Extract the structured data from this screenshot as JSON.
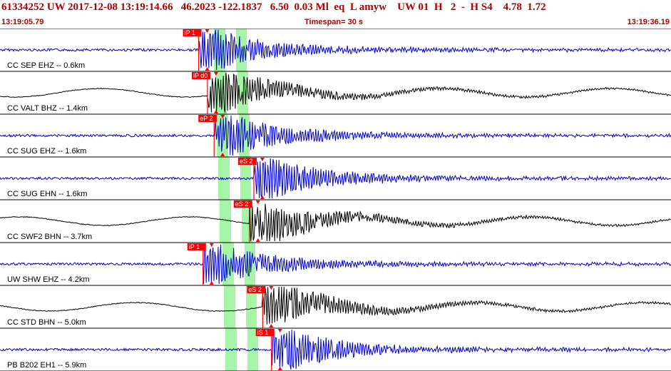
{
  "header": {
    "event_line": "61334252 UW 2017-12-08 13:19:14.66   46.2023 -122.1837   6.50  0.03 Ml  eq  L amyw    UW 01  H   2  -  H S4    4.78  1.72",
    "start_time": "13:19:05.79",
    "timespan": "Timespan=  30 s",
    "end_time": "13:19:36.19"
  },
  "colors": {
    "trace_blue": "#0000cc",
    "trace_black": "#000000",
    "window_green": "#a6f5a6",
    "pick_red": "#ff0000",
    "header_text": "#b00000"
  },
  "traces": [
    {
      "label": "CC SEP EHZ -- 0.6km",
      "color": "blue",
      "pick": "iP 1",
      "pick_s": 9.0
    },
    {
      "label": "CC VALT BHZ -- 1.4km",
      "color": "black",
      "pick": "iP d0",
      "pick_s": 9.4
    },
    {
      "label": "CC SUG EHZ -- 1.6km",
      "color": "blue",
      "pick": "eP 2",
      "pick_s": 9.7
    },
    {
      "label": "CC SUG EHN -- 1.6km",
      "color": "blue",
      "pick": "eS 2",
      "pick_s": 11.5
    },
    {
      "label": "CC SWF2 BHN -- 3.7km",
      "color": "black",
      "pick": "eS 2",
      "pick_s": 11.3
    },
    {
      "label": "UW SHW EHZ -- 4.2km",
      "color": "blue",
      "pick": "iP 1",
      "pick_s": 9.2
    },
    {
      "label": "CC STD BHN -- 5.0km",
      "color": "black",
      "pick": "eS 2",
      "pick_s": 11.9
    },
    {
      "label": "PB B202 EH1 -- 5.9km",
      "color": "blue",
      "pick": "iS 1",
      "pick_s": 12.3
    }
  ]
}
